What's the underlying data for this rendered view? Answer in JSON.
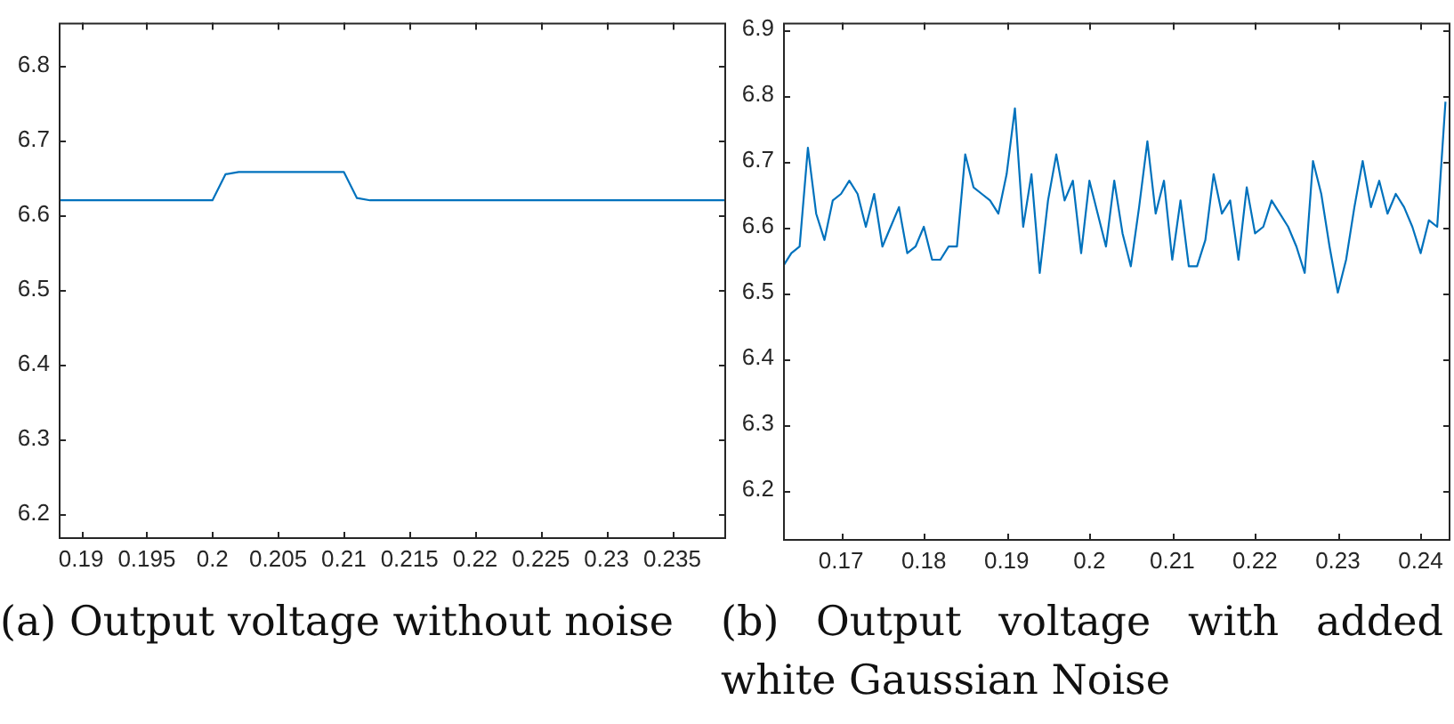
{
  "chart_data": [
    {
      "type": "line",
      "x": [
        0.1883,
        0.2,
        0.201,
        0.202,
        0.21,
        0.211,
        0.212,
        0.2391
      ],
      "series": [
        {
          "color": "#0072bd",
          "values": [
            6.62,
            6.62,
            6.655,
            6.658,
            6.658,
            6.623,
            6.62,
            6.62
          ]
        }
      ],
      "xlim": [
        0.1883,
        0.2391
      ],
      "xticks": [
        0.19,
        0.195,
        0.2,
        0.205,
        0.21,
        0.215,
        0.22,
        0.225,
        0.23,
        0.235
      ],
      "ylim": [
        6.166,
        6.858
      ],
      "yticks": [
        6.2,
        6.3,
        6.4,
        6.5,
        6.6,
        6.7,
        6.8
      ],
      "grid": false,
      "legend": false,
      "marker": "none",
      "line_style": "solid",
      "annotations": [
        "(a) Output voltage without noise"
      ]
    },
    {
      "type": "line",
      "x": [
        0.163,
        0.164,
        0.165,
        0.166,
        0.167,
        0.168,
        0.169,
        0.17,
        0.171,
        0.172,
        0.173,
        0.174,
        0.175,
        0.176,
        0.177,
        0.178,
        0.179,
        0.18,
        0.181,
        0.182,
        0.183,
        0.184,
        0.185,
        0.186,
        0.187,
        0.188,
        0.189,
        0.19,
        0.191,
        0.192,
        0.193,
        0.194,
        0.195,
        0.196,
        0.197,
        0.198,
        0.199,
        0.2,
        0.201,
        0.202,
        0.203,
        0.204,
        0.205,
        0.206,
        0.207,
        0.208,
        0.209,
        0.21,
        0.211,
        0.212,
        0.213,
        0.214,
        0.215,
        0.216,
        0.217,
        0.218,
        0.219,
        0.22,
        0.221,
        0.222,
        0.223,
        0.224,
        0.225,
        0.226,
        0.227,
        0.228,
        0.229,
        0.23,
        0.231,
        0.232,
        0.233,
        0.234,
        0.235,
        0.236,
        0.237,
        0.238,
        0.239,
        0.24,
        0.241,
        0.242,
        0.243
      ],
      "series": [
        {
          "color": "#0072bd",
          "values": [
            6.54,
            6.56,
            6.57,
            6.72,
            6.62,
            6.58,
            6.64,
            6.65,
            6.67,
            6.65,
            6.6,
            6.65,
            6.57,
            6.6,
            6.63,
            6.56,
            6.57,
            6.6,
            6.55,
            6.55,
            6.57,
            6.57,
            6.71,
            6.66,
            6.65,
            6.64,
            6.62,
            6.68,
            6.78,
            6.6,
            6.68,
            6.53,
            6.64,
            6.71,
            6.64,
            6.67,
            6.56,
            6.67,
            6.62,
            6.57,
            6.67,
            6.59,
            6.54,
            6.63,
            6.73,
            6.62,
            6.67,
            6.55,
            6.64,
            6.54,
            6.54,
            6.58,
            6.68,
            6.62,
            6.64,
            6.55,
            6.66,
            6.59,
            6.6,
            6.64,
            6.62,
            6.6,
            6.57,
            6.53,
            6.7,
            6.65,
            6.57,
            6.5,
            6.55,
            6.63,
            6.7,
            6.63,
            6.67,
            6.62,
            6.65,
            6.63,
            6.6,
            6.56,
            6.61,
            6.6,
            6.79
          ]
        }
      ],
      "xlim": [
        0.163,
        0.2436
      ],
      "xticks": [
        0.17,
        0.18,
        0.19,
        0.2,
        0.21,
        0.22,
        0.23,
        0.24
      ],
      "ylim": [
        6.123,
        6.91
      ],
      "yticks": [
        6.2,
        6.3,
        6.4,
        6.5,
        6.6,
        6.7,
        6.8,
        6.9
      ],
      "grid": false,
      "legend": false,
      "marker": "none",
      "line_style": "solid",
      "annotations": [
        "(b) Output voltage with added white Gaussian Noise"
      ]
    }
  ]
}
